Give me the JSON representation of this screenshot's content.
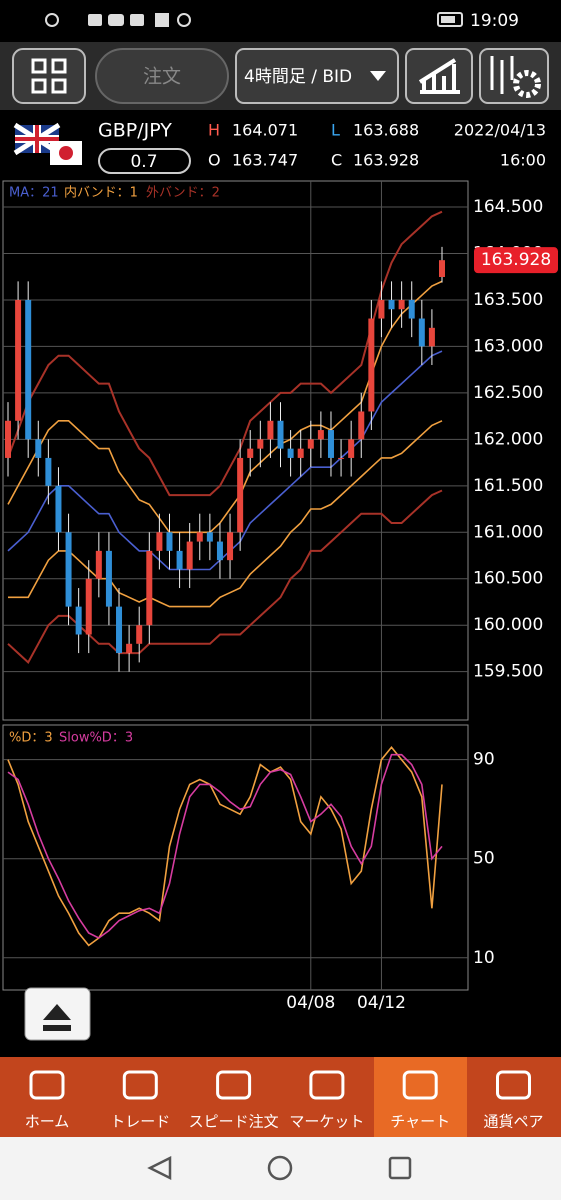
{
  "status_bar": {
    "time": "19:09"
  },
  "toolbar": {
    "order": "注文",
    "timeframe": "4時間足 / BID"
  },
  "header": {
    "pair": "GBP/JPY",
    "spread": "0.7",
    "high_label": "H",
    "high": "164.071",
    "low_label": "L",
    "low": "163.688",
    "open_label": "O",
    "open": "163.747",
    "close_label": "C",
    "close": "163.928",
    "date": "2022/04/13",
    "time": "16:00"
  },
  "chart": {
    "price": {
      "type": "candlestick",
      "ylim": [
        158.98,
        164.78
      ],
      "yticks": [
        {
          "value": 164.5,
          "label": "164.500"
        },
        {
          "value": 164,
          "label": "164.000"
        },
        {
          "value": 163.5,
          "label": "163.500"
        },
        {
          "value": 163,
          "label": "163.000"
        },
        {
          "value": 162.5,
          "label": "162.500"
        },
        {
          "value": 162,
          "label": "162.000"
        },
        {
          "value": 161.5,
          "label": "161.500"
        },
        {
          "value": 161,
          "label": "161.000"
        },
        {
          "value": 160.5,
          "label": "160.500"
        },
        {
          "value": 160,
          "label": "160.000"
        },
        {
          "value": 159.5,
          "label": "159.500"
        }
      ],
      "up_color": "#e8463c",
      "down_color": "#2f8fd8",
      "candles": {
        "open": [
          161.8,
          162.2,
          163.5,
          162.0,
          161.8,
          161.5,
          161.0,
          160.2,
          159.9,
          160.5,
          160.8,
          160.2,
          159.7,
          159.8,
          160.0,
          160.8,
          161.0,
          160.8,
          160.6,
          160.9,
          161.0,
          160.9,
          160.7,
          161.0,
          161.8,
          161.9,
          162.0,
          162.2,
          161.9,
          161.8,
          161.9,
          162.0,
          162.1,
          161.8,
          161.8,
          162.0,
          162.3,
          163.3,
          163.5,
          163.4,
          163.5,
          163.3,
          163.0,
          163.747
        ],
        "high": [
          162.4,
          163.7,
          163.7,
          162.2,
          162.0,
          161.7,
          161.2,
          160.4,
          160.7,
          161.0,
          161.0,
          160.4,
          160.0,
          160.2,
          161.0,
          161.2,
          161.2,
          161.0,
          161.1,
          161.2,
          161.2,
          161.1,
          161.2,
          162.0,
          162.1,
          162.2,
          162.4,
          162.4,
          162.1,
          162.1,
          162.2,
          162.3,
          162.3,
          162.0,
          162.2,
          162.5,
          163.5,
          163.7,
          163.7,
          163.7,
          163.7,
          163.5,
          163.4,
          164.071
        ],
        "low": [
          161.6,
          162.0,
          161.8,
          161.6,
          161.3,
          160.8,
          160.0,
          159.7,
          159.7,
          160.3,
          160.0,
          159.5,
          159.5,
          159.6,
          159.8,
          160.6,
          160.6,
          160.4,
          160.4,
          160.7,
          160.7,
          160.5,
          160.5,
          160.8,
          161.6,
          161.7,
          161.8,
          161.7,
          161.6,
          161.6,
          161.7,
          161.8,
          161.6,
          161.6,
          161.6,
          161.8,
          162.1,
          163.1,
          163.2,
          163.2,
          163.1,
          162.8,
          162.8,
          163.688
        ],
        "close": [
          162.2,
          163.5,
          162.0,
          161.8,
          161.5,
          161.0,
          160.2,
          159.9,
          160.5,
          160.8,
          160.2,
          159.7,
          159.8,
          160.0,
          160.8,
          161.0,
          160.8,
          160.6,
          160.9,
          161.0,
          160.9,
          160.7,
          161.0,
          161.8,
          161.9,
          162.0,
          162.2,
          161.9,
          161.8,
          161.9,
          162.0,
          162.1,
          161.8,
          161.8,
          162.0,
          162.3,
          163.3,
          163.5,
          163.4,
          163.5,
          163.3,
          163.0,
          163.2,
          163.928
        ]
      },
      "xticks": [
        {
          "value": 30,
          "label": "04/08"
        },
        {
          "value": 37,
          "label": "04/12"
        }
      ],
      "ma": {
        "label": "MA：21",
        "color": "#4a5fd0",
        "values": [
          160.8,
          160.9,
          161.0,
          161.2,
          161.4,
          161.5,
          161.5,
          161.4,
          161.3,
          161.2,
          161.2,
          161.0,
          160.9,
          160.8,
          160.8,
          160.7,
          160.6,
          160.6,
          160.6,
          160.6,
          160.6,
          160.7,
          160.8,
          160.9,
          161.1,
          161.2,
          161.3,
          161.4,
          161.5,
          161.6,
          161.7,
          161.7,
          161.7,
          161.8,
          161.9,
          162.0,
          162.2,
          162.4,
          162.5,
          162.6,
          162.7,
          162.8,
          162.9,
          162.95
        ]
      },
      "inner_band": {
        "label": "内バンド：1",
        "color": "#f0a040",
        "upper": [
          161.3,
          161.5,
          161.7,
          161.9,
          162.1,
          162.2,
          162.2,
          162.1,
          162.0,
          161.9,
          161.9,
          161.65,
          161.5,
          161.35,
          161.3,
          161.15,
          161.0,
          161.0,
          161.0,
          161.0,
          161.0,
          161.1,
          161.25,
          161.4,
          161.65,
          161.75,
          161.85,
          161.95,
          162.0,
          162.1,
          162.15,
          162.15,
          162.1,
          162.2,
          162.3,
          162.4,
          162.7,
          163.0,
          163.2,
          163.35,
          163.45,
          163.55,
          163.65,
          163.7
        ],
        "lower": [
          160.3,
          160.3,
          160.3,
          160.5,
          160.7,
          160.8,
          160.8,
          160.7,
          160.6,
          160.5,
          160.5,
          160.35,
          160.3,
          160.25,
          160.3,
          160.25,
          160.2,
          160.2,
          160.2,
          160.2,
          160.2,
          160.3,
          160.35,
          160.4,
          160.55,
          160.65,
          160.75,
          160.85,
          161.0,
          161.1,
          161.25,
          161.25,
          161.3,
          161.4,
          161.5,
          161.6,
          161.7,
          161.8,
          161.8,
          161.85,
          161.95,
          162.05,
          162.15,
          162.2
        ]
      },
      "outer_band": {
        "label": "外バンド：2",
        "color": "#a83228",
        "upper": [
          161.8,
          162.1,
          162.4,
          162.6,
          162.8,
          162.9,
          162.9,
          162.8,
          162.7,
          162.6,
          162.6,
          162.3,
          162.1,
          161.9,
          161.8,
          161.6,
          161.4,
          161.4,
          161.4,
          161.4,
          161.4,
          161.5,
          161.7,
          161.9,
          162.2,
          162.3,
          162.4,
          162.5,
          162.5,
          162.6,
          162.6,
          162.6,
          162.5,
          162.6,
          162.7,
          162.8,
          163.2,
          163.6,
          163.9,
          164.1,
          164.2,
          164.3,
          164.4,
          164.45
        ],
        "lower": [
          159.8,
          159.7,
          159.6,
          159.8,
          160.0,
          160.1,
          160.1,
          160.0,
          159.9,
          159.8,
          159.8,
          159.7,
          159.7,
          159.7,
          159.8,
          159.8,
          159.8,
          159.8,
          159.8,
          159.8,
          159.8,
          159.9,
          159.9,
          159.9,
          160.0,
          160.1,
          160.2,
          160.3,
          160.5,
          160.6,
          160.8,
          160.8,
          160.9,
          161.0,
          161.1,
          161.2,
          161.2,
          161.2,
          161.1,
          161.1,
          161.2,
          161.3,
          161.4,
          161.45
        ]
      }
    },
    "stochastic": {
      "type": "line",
      "ylim": [
        -3,
        104
      ],
      "yticks": [
        90,
        50,
        10
      ],
      "d": {
        "label": "%D：3",
        "color": "#f0a040",
        "values": [
          90,
          80,
          65,
          55,
          45,
          35,
          28,
          20,
          15,
          18,
          25,
          28,
          28,
          30,
          28,
          25,
          55,
          70,
          80,
          82,
          80,
          72,
          70,
          68,
          75,
          88,
          85,
          87,
          82,
          65,
          60,
          75,
          70,
          62,
          40,
          45,
          70,
          90,
          95,
          90,
          85,
          75,
          30,
          80
        ]
      },
      "slow_d": {
        "label": "Slow%D：3",
        "color": "#d63ca0",
        "values": [
          85,
          82,
          72,
          60,
          50,
          42,
          33,
          26,
          20,
          18,
          21,
          25,
          27,
          29,
          30,
          28,
          40,
          60,
          75,
          80,
          80,
          77,
          73,
          70,
          71,
          80,
          85,
          86,
          84,
          75,
          65,
          68,
          72,
          67,
          55,
          48,
          55,
          80,
          92,
          92,
          88,
          80,
          50,
          55
        ]
      }
    }
  },
  "nav": [
    "ホーム",
    "トレード",
    "スピード注文",
    "マーケット",
    "チャート",
    "通貨ペア"
  ]
}
